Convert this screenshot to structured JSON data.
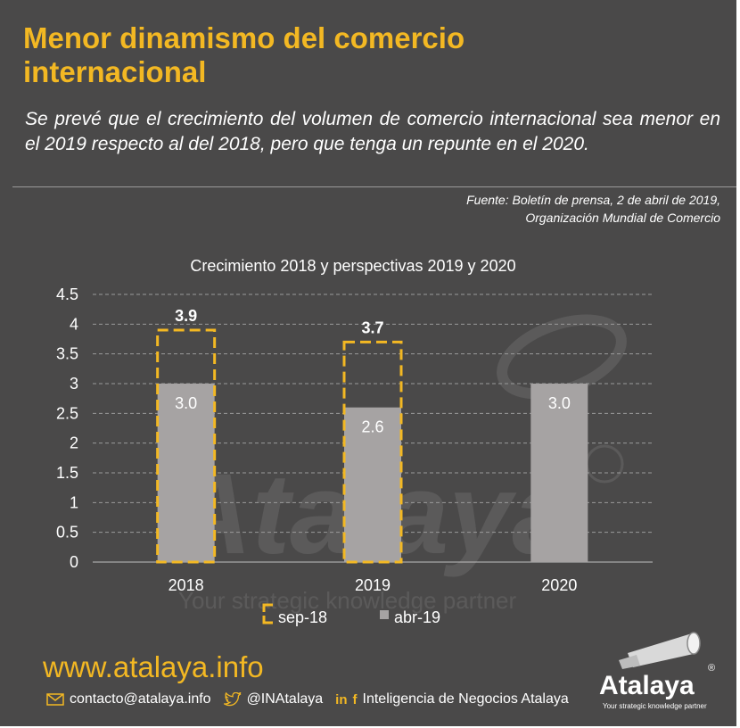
{
  "header": {
    "title": "Menor dinamismo del comercio internacional",
    "subtitle": "Se prevé que el crecimiento del volumen de comercio internacional sea menor en el 2019 respecto al del 2018, pero que tenga un  repunte en el 2020.",
    "source_line1": "Fuente: Boletín de prensa, 2 de abril de 2019,",
    "source_line2": "Organización Mundial de Comercio"
  },
  "chart_data": {
    "type": "bar",
    "title": "Crecimiento 2018 y perspectivas 2019 y 2020",
    "categories": [
      "2018",
      "2019",
      "2020"
    ],
    "series": [
      {
        "name": "sep-18",
        "values": [
          3.9,
          3.7,
          null
        ],
        "labels": [
          "3.9",
          "3.7",
          ""
        ],
        "style": "dashed-outline",
        "color": "#f3b823"
      },
      {
        "name": "abr-19",
        "values": [
          3.0,
          2.6,
          3.0
        ],
        "labels": [
          "3.0",
          "2.6",
          "3.0"
        ],
        "style": "filled",
        "color": "#a6a3a3"
      }
    ],
    "ylim": [
      0,
      4.5
    ],
    "yticks": [
      "0",
      "0.5",
      "1",
      "1.5",
      "2",
      "2.5",
      "3",
      "3.5",
      "4",
      "4.5"
    ],
    "ytick_values": [
      0,
      0.5,
      1,
      1.5,
      2,
      2.5,
      3,
      3.5,
      4,
      4.5
    ],
    "grid": true,
    "legend_position": "bottom"
  },
  "watermark": {
    "brand": "Atalaya",
    "tagline": "Your strategic knowledge partner"
  },
  "footer": {
    "website": "www.atalaya.info",
    "email": "contacto@atalaya.info",
    "twitter": "@INAtalaya",
    "linkedin_facebook": "Inteligencia de Negocios Atalaya",
    "logo_name": "Atalaya",
    "logo_tagline": "Your strategic knowledge partner"
  },
  "colors": {
    "background": "#4a4949",
    "accent": "#f3b823",
    "bar": "#a6a3a3",
    "text": "#ffffff"
  }
}
